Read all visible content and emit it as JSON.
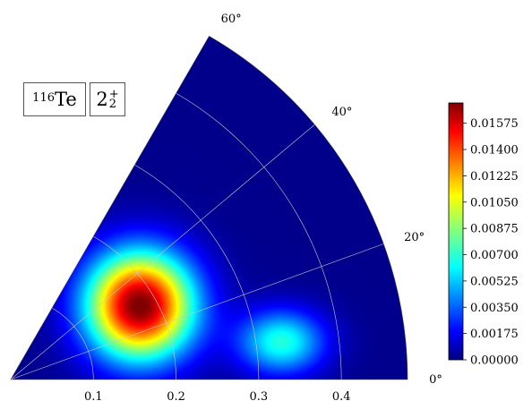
{
  "labels": {
    "nucleus_mass": "116",
    "nucleus_symbol": "Te",
    "state_main": "2",
    "state_sub": "2",
    "state_sup": "+"
  },
  "chart_data": {
    "type": "heatmap",
    "projection": "polar",
    "theta_range_deg": [
      0,
      60
    ],
    "r_range": [
      0,
      0.48
    ],
    "radial_ticks": [
      "0.1",
      "0.2",
      "0.3",
      "0.4"
    ],
    "radial_tick_values": [
      0.1,
      0.2,
      0.3,
      0.4
    ],
    "angular_ticks": [
      "0°",
      "20°",
      "40°",
      "60°"
    ],
    "angular_tick_values": [
      0,
      20,
      40,
      60
    ],
    "grid": true,
    "colormap": "jet",
    "colorbar": {
      "placement": "right",
      "min": 0.0,
      "max": 0.0171,
      "ticks": [
        "0.00000",
        "0.00175",
        "0.00350",
        "0.00525",
        "0.00700",
        "0.00875",
        "0.01050",
        "0.01225",
        "0.01400",
        "0.01575"
      ],
      "tick_values": [
        0.0,
        0.00175,
        0.0035,
        0.00525,
        0.007,
        0.00875,
        0.0105,
        0.01225,
        0.014,
        0.01575
      ]
    },
    "peaks": [
      {
        "beta": 0.18,
        "gamma_deg": 30,
        "value": 0.0171
      },
      {
        "beta": 0.33,
        "gamma_deg": 8,
        "value": 0.0068
      }
    ],
    "background_level": 0.0002
  }
}
